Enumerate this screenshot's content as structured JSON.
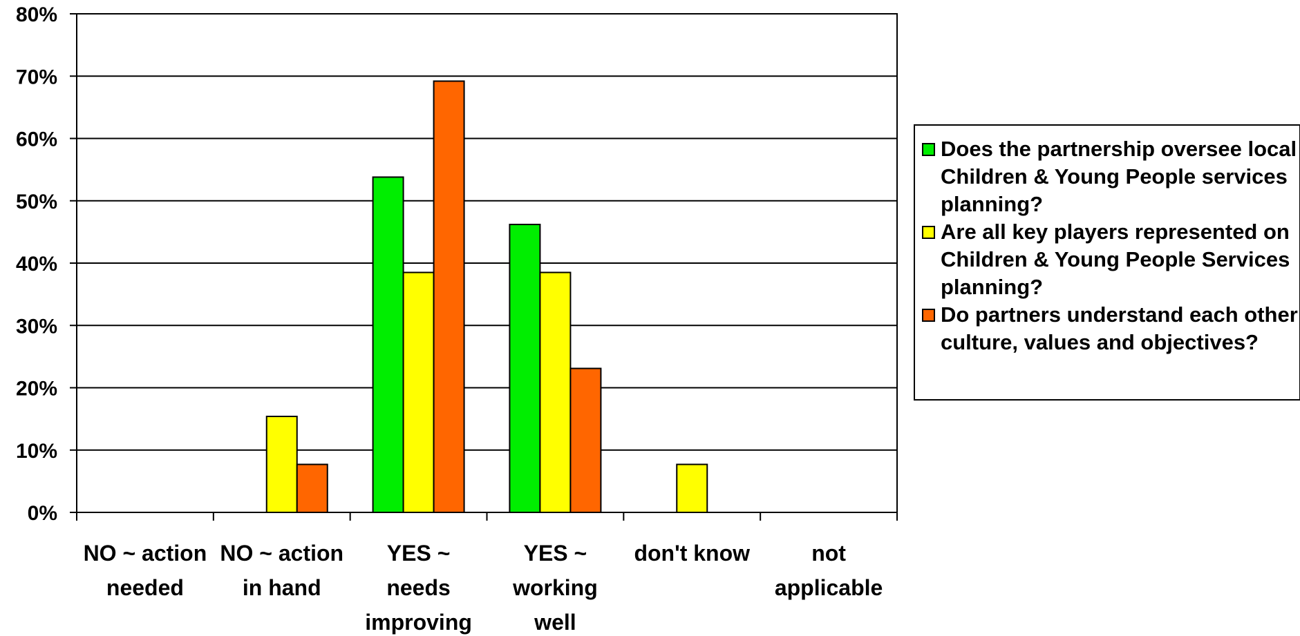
{
  "chart_data": {
    "type": "bar",
    "title": "",
    "xlabel": "",
    "ylabel": "",
    "ylim": [
      0,
      80
    ],
    "y_ticks": [
      "0%",
      "10%",
      "20%",
      "30%",
      "40%",
      "50%",
      "60%",
      "70%",
      "80%"
    ],
    "grid": true,
    "legend_position": "right",
    "categories": [
      [
        "NO ~ action",
        "needed"
      ],
      [
        "NO ~ action",
        "in hand"
      ],
      [
        "YES ~",
        "needs",
        "improving"
      ],
      [
        "YES ~",
        "working",
        "well"
      ],
      [
        "don't know"
      ],
      [
        "not",
        "applicable"
      ]
    ],
    "series": [
      {
        "name_lines": [
          "Does the partnership oversee local",
          "Children & Young People services",
          "planning?"
        ],
        "color": "#00ee00",
        "values": [
          0,
          0,
          53.8,
          46.2,
          0,
          0
        ]
      },
      {
        "name_lines": [
          "Are all key players represented on",
          "Children & Young People Services",
          "planning?"
        ],
        "color": "#ffff00",
        "values": [
          0,
          15.4,
          38.5,
          38.5,
          7.7,
          0
        ]
      },
      {
        "name_lines": [
          "Do partners understand each other",
          "culture, values and objectives?"
        ],
        "color": "#ff6600",
        "values": [
          0,
          7.7,
          69.2,
          23.1,
          0,
          0
        ]
      }
    ]
  }
}
